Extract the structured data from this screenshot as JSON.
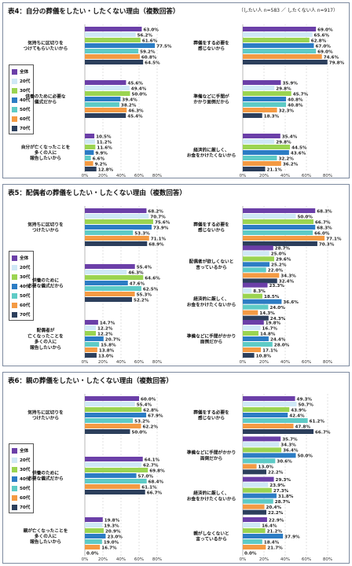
{
  "note": "（したい人 n=583 ／ したくない人 n=917）",
  "legend": [
    {
      "label": "全体",
      "color": "#6b3fa8"
    },
    {
      "label": "20代",
      "color": "#cfe8f6"
    },
    {
      "label": "30代",
      "color": "#9bd451"
    },
    {
      "label": "40代",
      "color": "#2c7cc4"
    },
    {
      "label": "50代",
      "color": "#5ecbc6"
    },
    {
      "label": "60代",
      "color": "#f49a43"
    },
    {
      "label": "70代",
      "color": "#2c3f5c"
    }
  ],
  "chart_data": [
    {
      "type": "bar",
      "orientation": "horizontal",
      "title": "表4：自分の葬儀をしたい・したくない理由（複数回答）",
      "xlim": [
        0,
        80
      ],
      "ticks": [
        "0%",
        "20%",
        "40%",
        "60%",
        "80%"
      ],
      "series_names": [
        "全体",
        "20代",
        "30代",
        "40代",
        "50代",
        "60代",
        "70代"
      ],
      "left": {
        "categories": [
          "気持ちに区切りを\nつけてもらいたいから",
          "供養のために必要な\n儀式だから",
          "自分が亡くなったことを\n多くの人に\n報告したいから"
        ],
        "values": [
          [
            63.0,
            56.2,
            61.6,
            77.5,
            59.2,
            60.8,
            64.5
          ],
          [
            45.6,
            49.4,
            50.0,
            39.4,
            38.2,
            46.3,
            45.4
          ],
          [
            10.5,
            11.2,
            11.6,
            9.9,
            6.6,
            9.2,
            12.8
          ]
        ],
        "labels": [
          [
            "63.0%",
            "56.2%",
            "61.6%",
            "77.5%",
            "59.2%",
            "60.8%",
            "64.5%"
          ],
          [
            "45.6%",
            "49.4%",
            "50.0%",
            "39.4%",
            "38.2%",
            "46.3%",
            "45.4%"
          ],
          [
            "10.5%",
            "11.2%",
            "11.6%",
            "9.9%",
            "6.6%",
            "9.2%",
            "12.8%"
          ]
        ]
      },
      "right": {
        "categories": [
          "葬儀をする必要を\n感じないから",
          "準備などに手間が\nかかり面倒だから",
          "経済的に厳しく、\nお金をかけたくないから"
        ],
        "values": [
          [
            69.0,
            65.6,
            62.8,
            67.0,
            69.0,
            74.6,
            79.8
          ],
          [
            35.9,
            29.8,
            45.7,
            40.8,
            40.8,
            32.3,
            18.3
          ],
          [
            35.4,
            29.8,
            44.5,
            43.6,
            32.2,
            36.2,
            21.1
          ]
        ],
        "labels": [
          [
            "69.0%",
            "65.6%",
            "62.8%",
            "67.0%",
            "69.0%",
            "74.6%",
            "79.8%"
          ],
          [
            "35.9%",
            "29.8%",
            "45.7%",
            "40.8%",
            "40.8%",
            "32.3%",
            "18.3%"
          ],
          [
            "35.4%",
            "29.8%",
            "44.5%",
            "43.6%",
            "32.2%",
            "36.2%",
            "21.1%"
          ]
        ]
      }
    },
    {
      "type": "bar",
      "orientation": "horizontal",
      "title": "表5：配偶者の葬儀をしたい・したくない理由（複数回答）",
      "xlim": [
        0,
        80
      ],
      "ticks": [
        "0%",
        "20%",
        "40%",
        "60%",
        "80%"
      ],
      "series_names": [
        "全体",
        "20代",
        "30代",
        "40代",
        "50代",
        "60代",
        "70代"
      ],
      "left": {
        "categories": [
          "気持ちに区切りを\nつけたいから",
          "供養のために\n必要な儀式だから",
          "配偶者が\n亡くなったことを\n多くの人に\n報告したいから"
        ],
        "values": [
          [
            68.2,
            70.7,
            75.6,
            73.9,
            53.3,
            71.1,
            68.9
          ],
          [
            55.4,
            46.3,
            64.6,
            47.6,
            62.5,
            55.3,
            52.2
          ],
          [
            14.7,
            12.2,
            12.2,
            20.7,
            15.8,
            13.8,
            13.0
          ]
        ],
        "labels": [
          [
            "68.2%",
            "70.7%",
            "75.6%",
            "73.9%",
            "53.3%",
            "71.1%",
            "68.9%"
          ],
          [
            "55.4%",
            "46.3%",
            "64.6%",
            "47.6%",
            "62.5%",
            "55.3%",
            "52.2%"
          ],
          [
            "14.7%",
            "12.2%",
            "12.2%",
            "20.7%",
            "15.8%",
            "13.8%",
            "13.0%"
          ]
        ]
      },
      "right": {
        "categories": [
          "葬儀をする必要を\n感じないから",
          "配偶者が欲しくないと\n言っているから",
          "経済的に厳しく、\nお金をかけたくないから",
          "準備などに手間がかかり\n面倒だから"
        ],
        "values": [
          [
            68.3,
            50.0,
            66.7,
            68.3,
            66.0,
            77.1,
            70.3
          ],
          [
            28.7,
            25.0,
            29.6,
            25.2,
            22.0,
            34.3,
            32.4
          ],
          [
            23.3,
            8.3,
            18.5,
            36.6,
            24.0,
            14.3,
            24.3
          ],
          [
            19.8,
            16.7,
            14.8,
            24.4,
            28.0,
            17.1,
            10.8
          ]
        ],
        "labels": [
          [
            "68.3%",
            "50.0%",
            "66.7%",
            "68.3%",
            "66.0%",
            "77.1%",
            "70.3%"
          ],
          [
            "28.7%",
            "25.0%",
            "29.6%",
            "25.2%",
            "22.0%",
            "34.3%",
            "32.4%"
          ],
          [
            "23.3%",
            "8.3%",
            "18.5%",
            "36.6%",
            "24.0%",
            "14.3%",
            "24.3%"
          ],
          [
            "19.8%",
            "16.7%",
            "14.8%",
            "24.4%",
            "28.0%",
            "17.1%",
            "10.8%"
          ]
        ]
      }
    },
    {
      "type": "bar",
      "orientation": "horizontal",
      "title": "表6：親の葬儀をしたい・したくない理由（複数回答）",
      "xlim": [
        0,
        80
      ],
      "ticks": [
        "0%",
        "20%",
        "40%",
        "60%",
        "80%"
      ],
      "series_names": [
        "全体",
        "20代",
        "30代",
        "40代",
        "50代",
        "60代",
        "70代"
      ],
      "left": {
        "categories": [
          "気持ちに区切りを\nつけたいから",
          "供養のために\n必要な儀式だから",
          "親が亡くなったことを\n多くの人に\n報告したいから"
        ],
        "values": [
          [
            60.0,
            55.4,
            62.8,
            67.9,
            53.2,
            62.2,
            50.0
          ],
          [
            64.1,
            62.7,
            69.8,
            57.0,
            68.4,
            61.1,
            66.7
          ],
          [
            19.8,
            19.3,
            20.9,
            23.0,
            19.0,
            16.7,
            0.0
          ]
        ],
        "labels": [
          [
            "60.0%",
            "55.4%",
            "62.8%",
            "67.9%",
            "53.2%",
            "62.2%",
            "50.0%"
          ],
          [
            "64.1%",
            "62.7%",
            "69.8%",
            "57.0%",
            "68.4%",
            "61.1%",
            "66.7%"
          ],
          [
            "19.8%",
            "19.3%",
            "20.9%",
            "23.0%",
            "19.0%",
            "16.7%",
            "0.0%"
          ]
        ]
      },
      "right": {
        "categories": [
          "葬儀をする必要を\n感じないから",
          "準備などに手間がかかり\n面倒だから",
          "経済的に厳しく、\nお金をかけたくないから",
          "親がしなくないと\n言っているから"
        ],
        "values": [
          [
            49.3,
            50.7,
            43.9,
            42.4,
            61.2,
            47.8,
            66.7
          ],
          [
            35.7,
            34.3,
            36.4,
            50.0,
            30.6,
            13.0,
            22.2
          ],
          [
            29.3,
            23.9,
            27.3,
            31.8,
            28.7,
            20.4,
            22.2
          ],
          [
            22.9,
            16.4,
            21.2,
            37.9,
            18.4,
            21.7,
            0.0
          ]
        ],
        "labels": [
          [
            "49.3%",
            "50.7%",
            "43.9%",
            "42.4%",
            "61.2%",
            "47.8%",
            "66.7%"
          ],
          [
            "35.7%",
            "34.3%",
            "36.4%",
            "50.0%",
            "30.6%",
            "13.0%",
            "22.2%"
          ],
          [
            "29.3%",
            "23.9%",
            "27.3%",
            "31.8%",
            "28.7%",
            "20.4%",
            "22.2%"
          ],
          [
            "22.9%",
            "16.4%",
            "21.2%",
            "37.9%",
            "18.4%",
            "21.7%",
            "0.0%"
          ]
        ]
      }
    }
  ]
}
